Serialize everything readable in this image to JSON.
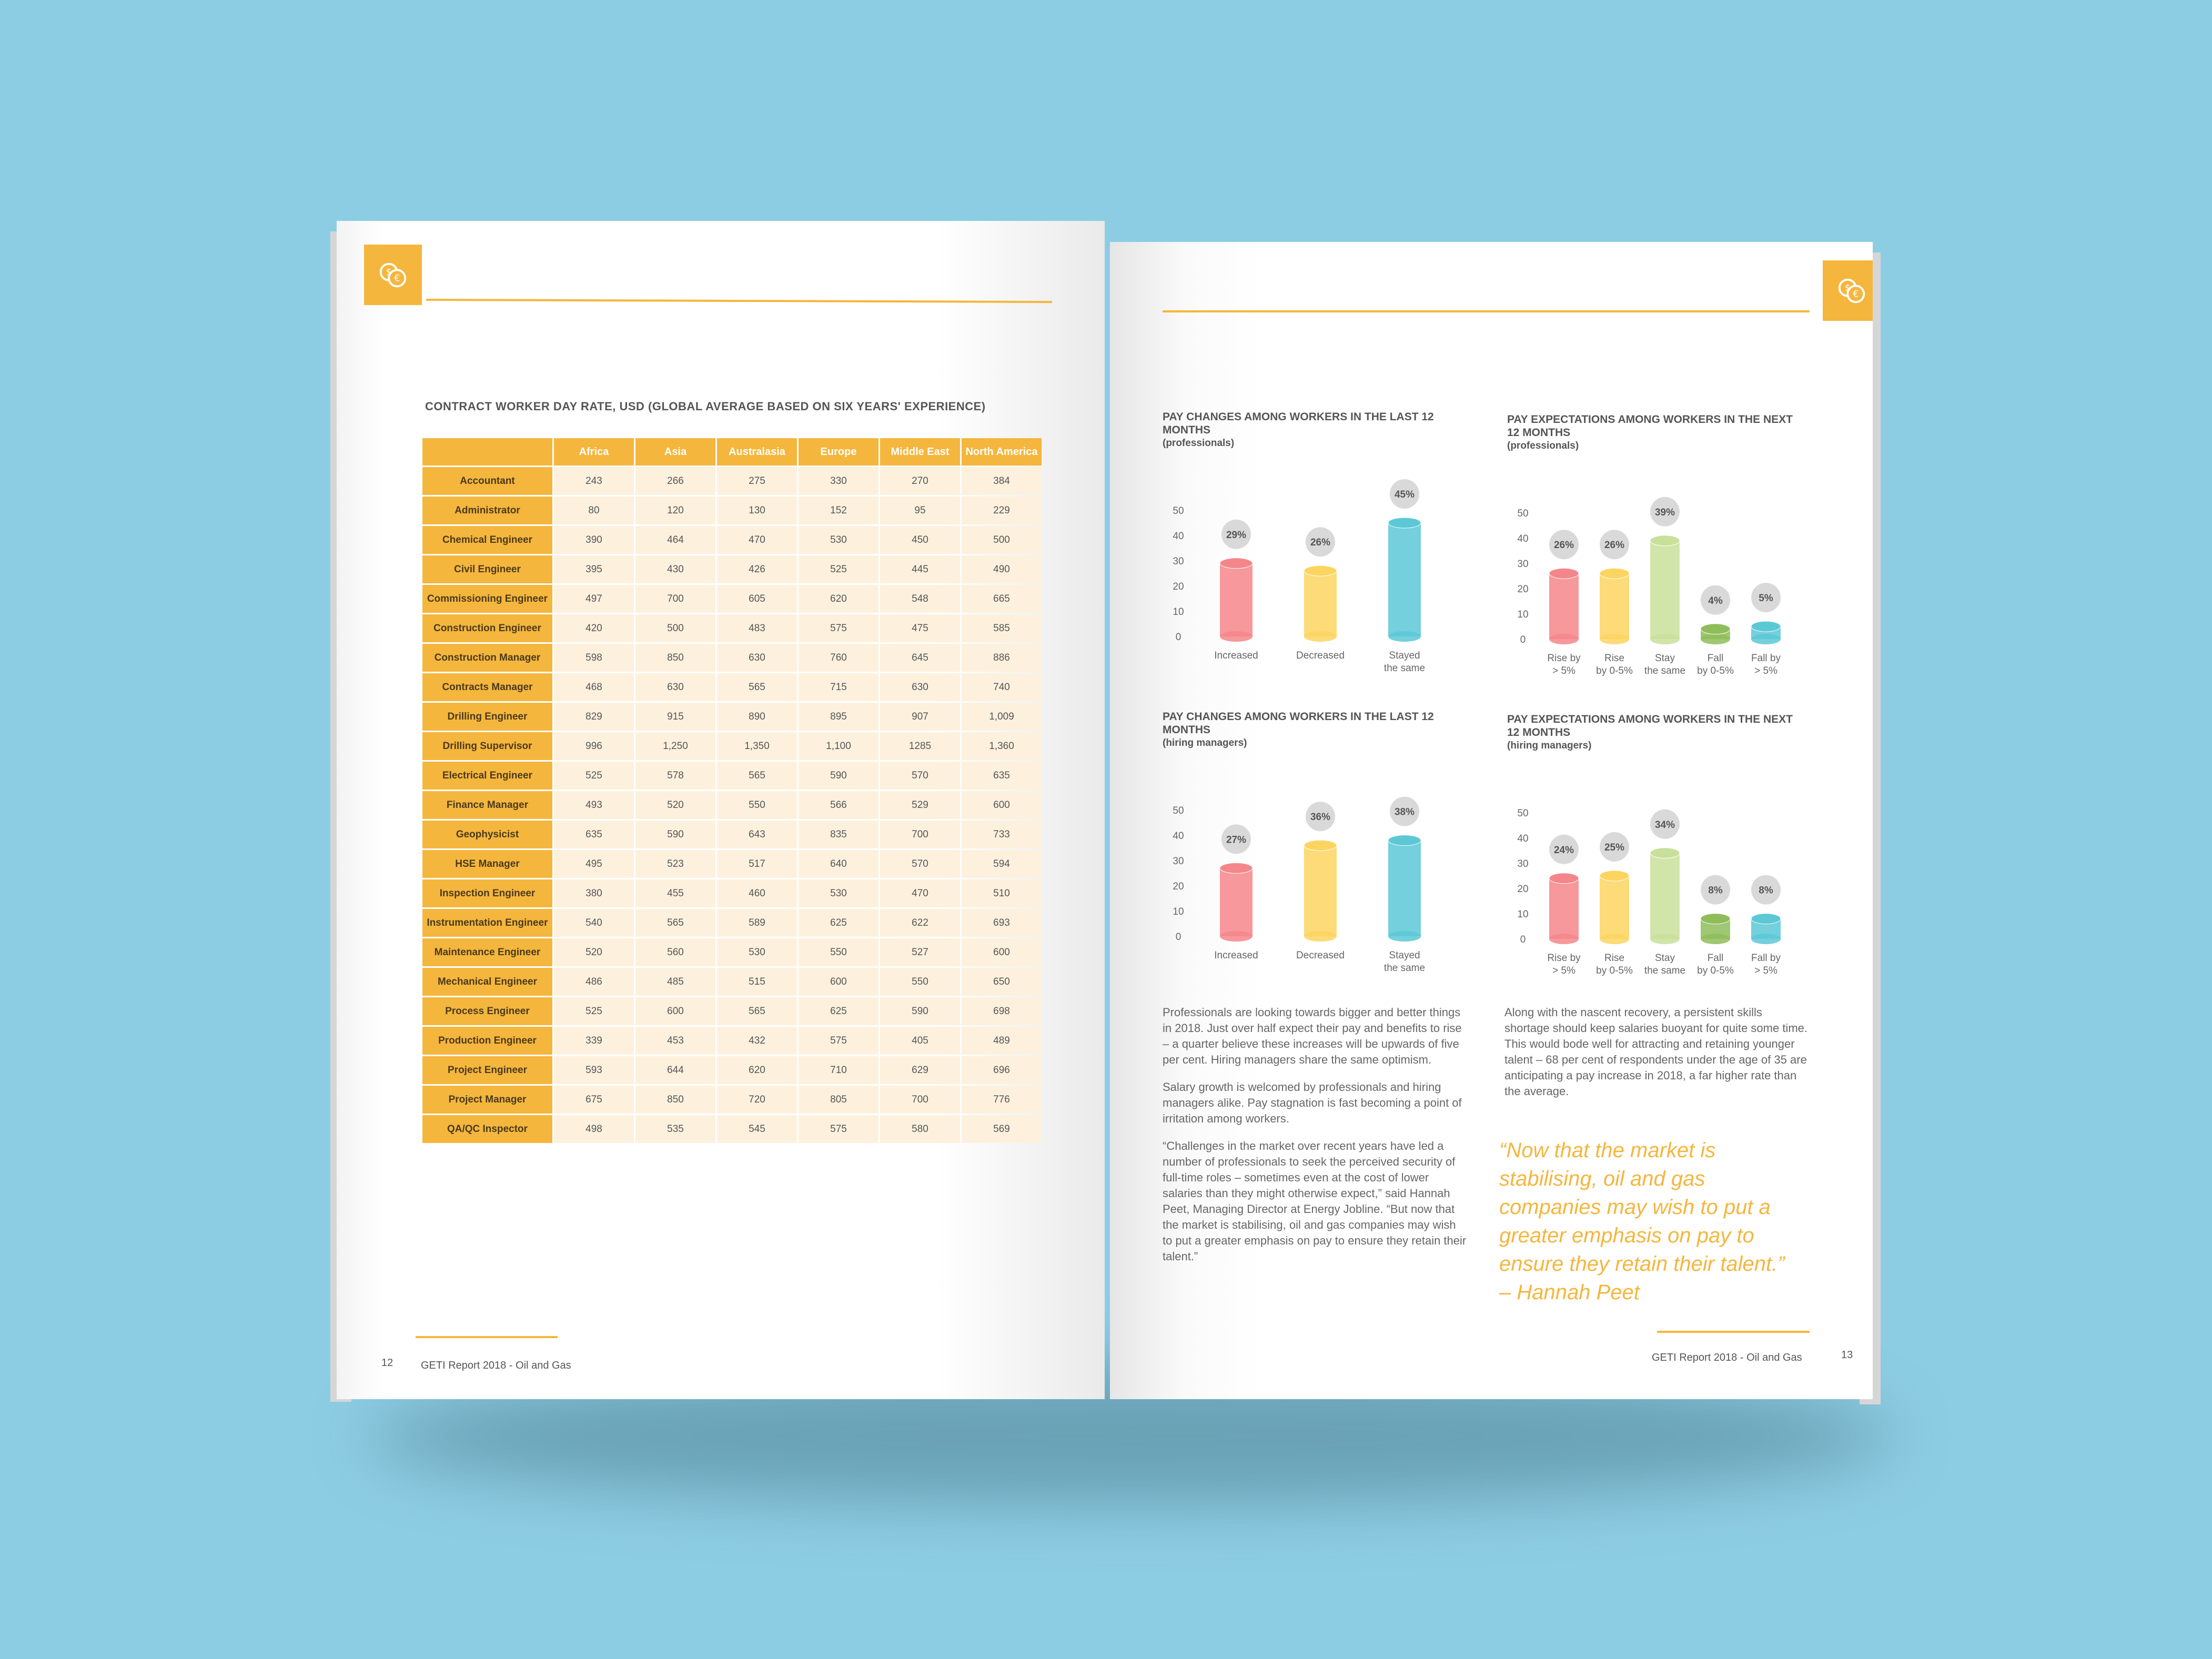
{
  "icon_tab": {
    "icon": "currency-coins-icon"
  },
  "left_page": {
    "section_title": "CONTRACT WORKER DAY RATE, USD (GLOBAL AVERAGE BASED ON SIX YEARS' EXPERIENCE)",
    "table": {
      "columns": [
        "Africa",
        "Asia",
        "Australasia",
        "Europe",
        "Middle East",
        "North America"
      ],
      "rows": [
        {
          "role": "Accountant",
          "values": [
            "243",
            "266",
            "275",
            "330",
            "270",
            "384"
          ]
        },
        {
          "role": "Administrator",
          "values": [
            "80",
            "120",
            "130",
            "152",
            "95",
            "229"
          ]
        },
        {
          "role": "Chemical Engineer",
          "values": [
            "390",
            "464",
            "470",
            "530",
            "450",
            "500"
          ]
        },
        {
          "role": "Civil Engineer",
          "values": [
            "395",
            "430",
            "426",
            "525",
            "445",
            "490"
          ]
        },
        {
          "role": "Commissioning Engineer",
          "values": [
            "497",
            "700",
            "605",
            "620",
            "548",
            "665"
          ]
        },
        {
          "role": "Construction Engineer",
          "values": [
            "420",
            "500",
            "483",
            "575",
            "475",
            "585"
          ]
        },
        {
          "role": "Construction Manager",
          "values": [
            "598",
            "850",
            "630",
            "760",
            "645",
            "886"
          ]
        },
        {
          "role": "Contracts Manager",
          "values": [
            "468",
            "630",
            "565",
            "715",
            "630",
            "740"
          ]
        },
        {
          "role": "Drilling Engineer",
          "values": [
            "829",
            "915",
            "890",
            "895",
            "907",
            "1,009"
          ]
        },
        {
          "role": "Drilling Supervisor",
          "values": [
            "996",
            "1,250",
            "1,350",
            "1,100",
            "1285",
            "1,360"
          ]
        },
        {
          "role": "Electrical Engineer",
          "values": [
            "525",
            "578",
            "565",
            "590",
            "570",
            "635"
          ]
        },
        {
          "role": "Finance Manager",
          "values": [
            "493",
            "520",
            "550",
            "566",
            "529",
            "600"
          ]
        },
        {
          "role": "Geophysicist",
          "values": [
            "635",
            "590",
            "643",
            "835",
            "700",
            "733"
          ]
        },
        {
          "role": "HSE Manager",
          "values": [
            "495",
            "523",
            "517",
            "640",
            "570",
            "594"
          ]
        },
        {
          "role": "Inspection Engineer",
          "values": [
            "380",
            "455",
            "460",
            "530",
            "470",
            "510"
          ]
        },
        {
          "role": "Instrumentation Engineer",
          "values": [
            "540",
            "565",
            "589",
            "625",
            "622",
            "693"
          ]
        },
        {
          "role": "Maintenance Engineer",
          "values": [
            "520",
            "560",
            "530",
            "550",
            "527",
            "600"
          ]
        },
        {
          "role": "Mechanical Engineer",
          "values": [
            "486",
            "485",
            "515",
            "600",
            "550",
            "650"
          ]
        },
        {
          "role": "Process Engineer",
          "values": [
            "525",
            "600",
            "565",
            "625",
            "590",
            "698"
          ]
        },
        {
          "role": "Production Engineer",
          "values": [
            "339",
            "453",
            "432",
            "575",
            "405",
            "489"
          ]
        },
        {
          "role": "Project Engineer",
          "values": [
            "593",
            "644",
            "620",
            "710",
            "629",
            "696"
          ]
        },
        {
          "role": "Project Manager",
          "values": [
            "675",
            "850",
            "720",
            "805",
            "700",
            "776"
          ]
        },
        {
          "role": "QA/QC Inspector",
          "values": [
            "498",
            "535",
            "545",
            "575",
            "580",
            "569"
          ]
        }
      ]
    },
    "page_number": "12",
    "footer_title": "GETI Report 2018 - Oil and Gas"
  },
  "right_page": {
    "page_number": "13",
    "footer_title": "GETI Report 2018 - Oil and Gas",
    "paragraphs_left": [
      "Professionals are looking towards bigger and better things in 2018. Just over half expect their pay and benefits to rise – a quarter believe these increases will be upwards of five per cent. Hiring managers share the same optimism.",
      "Salary growth is welcomed by professionals and hiring managers alike. Pay stagnation is fast becoming a point of irritation among workers.",
      "“Challenges in the market over recent years have led a number of professionals to seek the perceived security of full-time roles – sometimes even at the cost of lower salaries than they might otherwise expect,” said Hannah Peet, Managing Director at Energy Jobline. “But now that the market is stabilising, oil and gas companies may wish to put a greater emphasis on pay to ensure they retain their talent.”"
    ],
    "paragraph_right": "Along with the nascent recovery, a persistent skills shortage should keep salaries buoyant for quite some time. This would bode well for attracting and retaining younger talent – 68 per cent of respondents under the age of 35 are anticipating a pay increase in 2018, a far higher rate than the average.",
    "quote": "“Now that the market is stabilising, oil and gas companies may wish to put a greater emphasis on pay to ensure they retain their talent.” – Hannah Peet"
  },
  "chart_data": [
    {
      "type": "bar",
      "title": "PAY CHANGES AMONG WORKERS IN THE LAST 12 MONTHS",
      "subtitle": "(professionals)",
      "categories": [
        "Increased",
        "Decreased",
        "Stayed the same"
      ],
      "values": [
        29,
        26,
        45
      ],
      "labels": [
        "29%",
        "26%",
        "45%"
      ],
      "colors": [
        "#f4868b",
        "#fbd560",
        "#5cc8d6"
      ],
      "yticks": [
        0,
        10,
        20,
        30,
        40,
        50
      ],
      "ylim": [
        0,
        50
      ]
    },
    {
      "type": "bar",
      "title": "PAY EXPECTATIONS AMONG WORKERS IN THE NEXT 12 MONTHS",
      "subtitle": "(professionals)",
      "categories": [
        "Rise by > 5%",
        "Rise by 0-5%",
        "Stay the same",
        "Fall by 0-5%",
        "Fall by > 5%"
      ],
      "values": [
        26,
        26,
        39,
        4,
        5
      ],
      "labels": [
        "26%",
        "26%",
        "39%",
        "4%",
        "5%"
      ],
      "colors": [
        "#f4868b",
        "#fbd560",
        "#c9e09b",
        "#8fbd5a",
        "#5cc8d6"
      ],
      "yticks": [
        0,
        10,
        20,
        30,
        40,
        50
      ],
      "ylim": [
        0,
        50
      ]
    },
    {
      "type": "bar",
      "title": "PAY CHANGES AMONG WORKERS IN THE LAST 12 MONTHS",
      "subtitle": "(hiring managers)",
      "categories": [
        "Increased",
        "Decreased",
        "Stayed the same"
      ],
      "values": [
        27,
        36,
        38
      ],
      "labels": [
        "27%",
        "36%",
        "38%"
      ],
      "colors": [
        "#f4868b",
        "#fbd560",
        "#5cc8d6"
      ],
      "yticks": [
        0,
        10,
        20,
        30,
        40,
        50
      ],
      "ylim": [
        0,
        50
      ]
    },
    {
      "type": "bar",
      "title": "PAY EXPECTATIONS AMONG WORKERS IN THE NEXT 12 MONTHS",
      "subtitle": "(hiring managers)",
      "categories": [
        "Rise by > 5%",
        "Rise by 0-5%",
        "Stay the same",
        "Fall by 0-5%",
        "Fall by > 5%"
      ],
      "values": [
        24,
        25,
        34,
        8,
        8
      ],
      "labels": [
        "24%",
        "25%",
        "34%",
        "8%",
        "8%"
      ],
      "colors": [
        "#f4868b",
        "#fbd560",
        "#c9e09b",
        "#8fbd5a",
        "#5cc8d6"
      ],
      "yticks": [
        0,
        10,
        20,
        30,
        40,
        50
      ],
      "ylim": [
        0,
        50
      ]
    }
  ]
}
